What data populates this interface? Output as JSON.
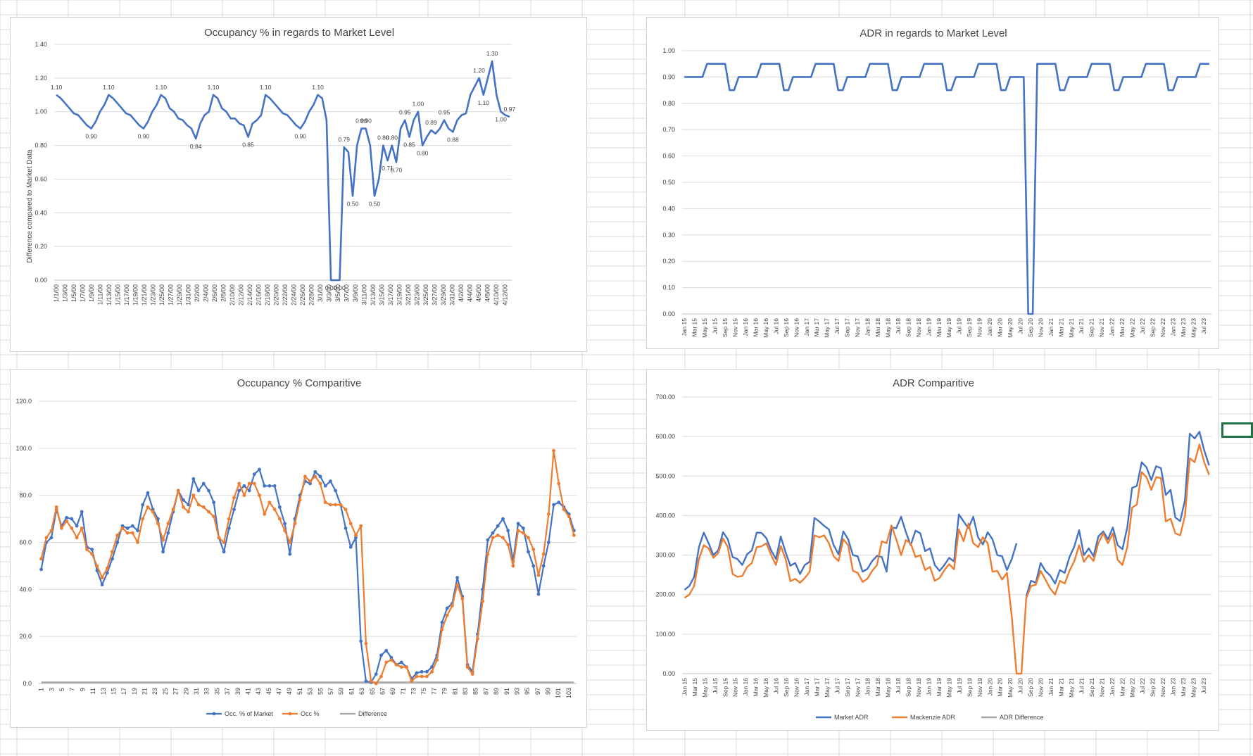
{
  "chart_data": [
    {
      "id": "occ-market",
      "type": "line",
      "title": "Occupancy % in regards to Market Level",
      "ylabel": "Difference compared to Market Data",
      "xlabel": "",
      "ylim": [
        0,
        1.4
      ],
      "yticks": [
        "0.00",
        "0.20",
        "0.40",
        "0.60",
        "0.80",
        "1.00",
        "1.20",
        "1.40"
      ],
      "xtick_labels": [
        "1/1/00",
        "1/3/00",
        "1/5/00",
        "1/7/00",
        "1/9/00",
        "1/11/00",
        "1/13/00",
        "1/15/00",
        "1/17/00",
        "1/19/00",
        "1/21/00",
        "1/23/00",
        "1/25/00",
        "1/27/00",
        "1/29/00",
        "1/31/00",
        "2/2/00",
        "2/4/00",
        "2/6/00",
        "2/8/00",
        "2/10/00",
        "2/12/00",
        "2/14/00",
        "2/16/00",
        "2/18/00",
        "2/20/00",
        "2/22/00",
        "2/24/00",
        "2/26/00",
        "2/28/00",
        "3/1/00",
        "3/3/00",
        "3/5/00",
        "3/7/00",
        "3/9/00",
        "3/11/00",
        "3/13/00",
        "3/15/00",
        "3/17/00",
        "3/19/00",
        "3/21/00",
        "3/23/00",
        "3/25/00",
        "3/27/00",
        "3/29/00",
        "3/31/00",
        "4/2/00",
        "4/4/00",
        "4/6/00",
        "4/8/00",
        "4/10/00",
        "4/12/00"
      ],
      "color": "#4472c4",
      "values": [
        1.1,
        1.08,
        1.05,
        1.02,
        0.99,
        0.98,
        0.95,
        0.92,
        0.9,
        0.94,
        1.0,
        1.04,
        1.1,
        1.08,
        1.05,
        1.02,
        0.99,
        0.98,
        0.95,
        0.92,
        0.9,
        0.94,
        1.0,
        1.04,
        1.1,
        1.08,
        1.02,
        1.0,
        0.96,
        0.95,
        0.92,
        0.9,
        0.84,
        0.93,
        0.98,
        1.0,
        1.1,
        1.08,
        1.02,
        1.0,
        0.96,
        0.96,
        0.93,
        0.92,
        0.85,
        0.93,
        0.95,
        0.98,
        1.1,
        1.08,
        1.05,
        1.02,
        0.99,
        0.98,
        0.95,
        0.92,
        0.9,
        0.94,
        1.0,
        1.04,
        1.1,
        1.08,
        0.95,
        0.0,
        0.0,
        0.0,
        0.79,
        0.76,
        0.5,
        0.8,
        0.9,
        0.9,
        0.8,
        0.5,
        0.6,
        0.8,
        0.71,
        0.8,
        0.7,
        0.9,
        0.95,
        0.85,
        0.95,
        1.0,
        0.8,
        0.85,
        0.89,
        0.87,
        0.9,
        0.95,
        0.9,
        0.88,
        0.95,
        0.98,
        0.99,
        1.1,
        1.15,
        1.2,
        1.1,
        1.2,
        1.3,
        1.1,
        1.0,
        0.98,
        0.97
      ],
      "data_labels": [
        {
          "i": 0,
          "text": "1.10"
        },
        {
          "i": 8,
          "text": "0.90"
        },
        {
          "i": 12,
          "text": "1.10"
        },
        {
          "i": 20,
          "text": "0.90"
        },
        {
          "i": 24,
          "text": "1.10"
        },
        {
          "i": 32,
          "text": "0.84"
        },
        {
          "i": 36,
          "text": "1.10"
        },
        {
          "i": 44,
          "text": "0.85"
        },
        {
          "i": 48,
          "text": "1.10"
        },
        {
          "i": 56,
          "text": "0.90"
        },
        {
          "i": 60,
          "text": "1.10"
        },
        {
          "i": 63,
          "text": "0.00"
        },
        {
          "i": 66,
          "text": "0.79"
        },
        {
          "i": 65,
          "text": "0.00"
        },
        {
          "i": 68,
          "text": "0.50"
        },
        {
          "i": 70,
          "text": "0.90"
        },
        {
          "i": 71,
          "text": "0.90"
        },
        {
          "i": 73,
          "text": "0.50"
        },
        {
          "i": 75,
          "text": "0.80"
        },
        {
          "i": 76,
          "text": "0.71"
        },
        {
          "i": 77,
          "text": "0.80"
        },
        {
          "i": 78,
          "text": "0.70"
        },
        {
          "i": 80,
          "text": "0.95"
        },
        {
          "i": 81,
          "text": "0.85"
        },
        {
          "i": 83,
          "text": "1.00"
        },
        {
          "i": 84,
          "text": "0.80"
        },
        {
          "i": 86,
          "text": "0.89"
        },
        {
          "i": 89,
          "text": "0.95"
        },
        {
          "i": 91,
          "text": "0.88"
        },
        {
          "i": 97,
          "text": "1.20"
        },
        {
          "i": 98,
          "text": "1.10"
        },
        {
          "i": 100,
          "text": "1.30"
        },
        {
          "i": 102,
          "text": "1.00"
        },
        {
          "i": 104,
          "text": "0.97"
        }
      ]
    },
    {
      "id": "adr-market",
      "type": "line",
      "title": "ADR in regards to Market Level",
      "ylabel": "",
      "xlabel": "",
      "ylim": [
        0,
        1.0
      ],
      "yticks": [
        "0.00",
        "0.10",
        "0.20",
        "0.30",
        "0.40",
        "0.50",
        "0.60",
        "0.70",
        "0.80",
        "0.90",
        "1.00"
      ],
      "xtick_labels": [
        "Jan 15",
        "Mar 15",
        "May 15",
        "Jul 15",
        "Sep 15",
        "Nov 15",
        "Jan 16",
        "Mar 16",
        "May 16",
        "Jul 16",
        "Sep 16",
        "Nov 16",
        "Jan 17",
        "Mar 17",
        "May 17",
        "Jul 17",
        "Sep 17",
        "Nov 17",
        "Jan 18",
        "Mar 18",
        "May 18",
        "Jul 18",
        "Sep 18",
        "Nov 18",
        "Jan 19",
        "Mar 19",
        "May 19",
        "Jul 19",
        "Sep 19",
        "Nov 19",
        "Jan 20",
        "Mar 20",
        "May 20",
        "Jul 20",
        "Sep 20",
        "Nov 20",
        "Jan 21",
        "Mar 21",
        "May 21",
        "Jul 21",
        "Sep 21",
        "Nov 21",
        "Jan 22",
        "Mar 22",
        "May 22",
        "Jul 22",
        "Sep 22",
        "Nov 22",
        "Jan 23",
        "Mar 23",
        "May 23",
        "Jul 23"
      ],
      "color": "#4472c4",
      "values": [
        0.9,
        0.9,
        0.9,
        0.9,
        0.9,
        0.95,
        0.95,
        0.95,
        0.95,
        0.95,
        0.85,
        0.85,
        0.9,
        0.9,
        0.9,
        0.9,
        0.9,
        0.95,
        0.95,
        0.95,
        0.95,
        0.95,
        0.85,
        0.85,
        0.9,
        0.9,
        0.9,
        0.9,
        0.9,
        0.95,
        0.95,
        0.95,
        0.95,
        0.95,
        0.85,
        0.85,
        0.9,
        0.9,
        0.9,
        0.9,
        0.9,
        0.95,
        0.95,
        0.95,
        0.95,
        0.95,
        0.85,
        0.85,
        0.9,
        0.9,
        0.9,
        0.9,
        0.9,
        0.95,
        0.95,
        0.95,
        0.95,
        0.95,
        0.85,
        0.85,
        0.9,
        0.9,
        0.9,
        0.9,
        0.9,
        0.95,
        0.95,
        0.95,
        0.95,
        0.95,
        0.85,
        0.85,
        0.9,
        0.9,
        0.9,
        0.9,
        0.0,
        0.0,
        0.95,
        0.95,
        0.95,
        0.95,
        0.95,
        0.85,
        0.85,
        0.9,
        0.9,
        0.9,
        0.9,
        0.9,
        0.95,
        0.95,
        0.95,
        0.95,
        0.95,
        0.85,
        0.85,
        0.9,
        0.9,
        0.9,
        0.9,
        0.9,
        0.95,
        0.95,
        0.95,
        0.95,
        0.95,
        0.85,
        0.85,
        0.9,
        0.9,
        0.9,
        0.9,
        0.9,
        0.95,
        0.95,
        0.95
      ]
    },
    {
      "id": "occ-comp",
      "type": "line",
      "title": "Occupancy % Comparitive",
      "ylim": [
        0,
        120
      ],
      "yticks": [
        "0.0",
        "20.0",
        "40.0",
        "60.0",
        "80.0",
        "100.0",
        "120.0"
      ],
      "xtick_labels": [
        "1",
        "3",
        "5",
        "7",
        "9",
        "11",
        "13",
        "15",
        "17",
        "19",
        "21",
        "23",
        "25",
        "27",
        "29",
        "31",
        "33",
        "35",
        "37",
        "39",
        "41",
        "43",
        "45",
        "47",
        "49",
        "51",
        "53",
        "55",
        "57",
        "59",
        "61",
        "63",
        "65",
        "67",
        "69",
        "71",
        "73",
        "75",
        "77",
        "79",
        "81",
        "83",
        "85",
        "87",
        "89",
        "91",
        "93",
        "95",
        "97",
        "99",
        "101",
        "103"
      ],
      "markers": true,
      "series": [
        {
          "name": "Occ. % of Market",
          "color": "#4472c4",
          "values": [
            48.5,
            60,
            62,
            74,
            67,
            70.5,
            70,
            67,
            73,
            58,
            57,
            48,
            42,
            47,
            53,
            60,
            67,
            66,
            67,
            65,
            76,
            81,
            74,
            70,
            56,
            64,
            73,
            82,
            78,
            76,
            87,
            82,
            85,
            82,
            77,
            62,
            56,
            66,
            74,
            82,
            84,
            82,
            89,
            91,
            84,
            84,
            84,
            75,
            68,
            55,
            70,
            80,
            86,
            85,
            90,
            88,
            84,
            86,
            82,
            76,
            66,
            58,
            62,
            18,
            1,
            0.5,
            4,
            12,
            14,
            11,
            8,
            9,
            7,
            2,
            4.5,
            5,
            5,
            7,
            12,
            26,
            32,
            34,
            45,
            37,
            8,
            5,
            21,
            40,
            61,
            64,
            67,
            70,
            65,
            52,
            68,
            66,
            56,
            50,
            38,
            50,
            60,
            76,
            77,
            75,
            72,
            65
          ],
          "legend": "Occ. % of Market"
        },
        {
          "name": "Occ %",
          "color": "#ed7d31",
          "values": [
            53,
            62,
            65,
            75,
            66,
            69,
            66,
            62,
            66,
            57,
            55,
            50,
            45,
            49,
            56,
            63,
            66,
            64,
            64,
            60,
            70,
            75,
            73,
            68,
            61,
            68,
            74,
            82,
            75,
            73,
            80,
            76,
            75,
            73,
            71,
            62,
            60,
            70,
            79,
            85,
            80,
            85,
            85,
            80,
            72,
            77,
            74,
            70,
            65,
            60,
            68,
            78,
            88,
            86,
            88,
            85,
            77,
            76,
            76,
            76,
            74,
            68,
            63,
            67,
            17,
            1,
            0,
            3,
            9,
            10,
            8,
            7,
            7,
            1,
            3,
            3,
            3,
            5,
            10,
            23,
            29,
            33,
            42,
            36,
            7,
            4,
            19,
            35,
            55,
            62,
            63,
            62,
            59,
            50,
            65,
            64,
            62,
            57,
            46,
            55,
            72,
            99,
            85,
            74,
            71,
            63
          ]
        }
      ],
      "difference": {
        "name": "Difference",
        "color": "#a5a5a5",
        "value": 0.5
      },
      "legend": [
        "Occ. % of Market",
        "Occ %",
        "Difference"
      ]
    },
    {
      "id": "adr-comp",
      "type": "line",
      "title": "ADR Comparitive",
      "ylim": [
        0,
        700
      ],
      "yticks": [
        "0.00",
        "100.00",
        "200.00",
        "300.00",
        "400.00",
        "500.00",
        "600.00",
        "700.00"
      ],
      "xtick_labels": [
        "Jan 15",
        "Mar 15",
        "May 15",
        "Jul 15",
        "Sep 15",
        "Nov 15",
        "Jan 16",
        "Mar 16",
        "May 16",
        "Jul 16",
        "Sep 16",
        "Nov 16",
        "Jan 17",
        "Mar 17",
        "May 17",
        "Jul 17",
        "Sep 17",
        "Nov 17",
        "Jan 18",
        "Mar 18",
        "May 18",
        "Jul 18",
        "Sep 18",
        "Nov 18",
        "Jan 19",
        "Mar 19",
        "May 19",
        "Jul 19",
        "Sep 19",
        "Nov 19",
        "Jan 20",
        "Mar 20",
        "May 20",
        "Jul 20",
        "Sep 20",
        "Nov 20",
        "Jan 21",
        "Mar 21",
        "May 21",
        "Jul 21",
        "Sep 21",
        "Nov 21",
        "Jan 22",
        "Mar 22",
        "May 22",
        "Jul 22",
        "Sep 22",
        "Nov 22",
        "Jan 23",
        "Mar 23",
        "May 23",
        "Jul 23"
      ],
      "series": [
        {
          "name": "Market ADR",
          "color": "#4472c4",
          "values": [
            212,
            222,
            245,
            320,
            357,
            330,
            300,
            312,
            358,
            340,
            295,
            290,
            275,
            302,
            312,
            357,
            356,
            343,
            312,
            290,
            347,
            307,
            273,
            280,
            252,
            275,
            283,
            394,
            385,
            374,
            365,
            325,
            302,
            360,
            340,
            300,
            297,
            258,
            265,
            285,
            298,
            295,
            258,
            370,
            368,
            397,
            358,
            325,
            362,
            355,
            310,
            317,
            275,
            260,
            275,
            293,
            284,
            403,
            385,
            368,
            397,
            345,
            327,
            358,
            340,
            300,
            297,
            262,
            290,
            330,
            null,
            195,
            235,
            230,
            280,
            260,
            248,
            228,
            262,
            255,
            295,
            322,
            363,
            300,
            317,
            297,
            347,
            360,
            340,
            370,
            325,
            315,
            370,
            470,
            475,
            535,
            522,
            490,
            525,
            520,
            452,
            465,
            395,
            386,
            440,
            607,
            595,
            612,
            565,
            527
          ]
        },
        {
          "name": "Mackenzie ADR",
          "color": "#ed7d31",
          "values": [
            192,
            200,
            222,
            290,
            325,
            317,
            293,
            305,
            342,
            320,
            252,
            245,
            247,
            270,
            280,
            320,
            322,
            330,
            300,
            275,
            323,
            290,
            234,
            240,
            230,
            242,
            258,
            350,
            345,
            350,
            330,
            297,
            285,
            340,
            325,
            260,
            255,
            232,
            240,
            260,
            275,
            335,
            330,
            375,
            340,
            300,
            338,
            330,
            295,
            300,
            262,
            270,
            235,
            242,
            262,
            277,
            264,
            365,
            335,
            380,
            330,
            320,
            345,
            330,
            258,
            260,
            238,
            255,
            145,
            0,
            0,
            190,
            222,
            225,
            260,
            238,
            215,
            200,
            235,
            228,
            260,
            285,
            325,
            283,
            300,
            285,
            330,
            355,
            330,
            355,
            288,
            275,
            320,
            420,
            428,
            510,
            497,
            465,
            497,
            495,
            385,
            392,
            355,
            350,
            400,
            545,
            535,
            580,
            535,
            503
          ]
        },
        {
          "name": "ADR Difference",
          "color": "#a5a5a5",
          "values": []
        }
      ],
      "legend": [
        "Market ADR",
        "Mackenzie ADR",
        "ADR Difference"
      ]
    }
  ]
}
